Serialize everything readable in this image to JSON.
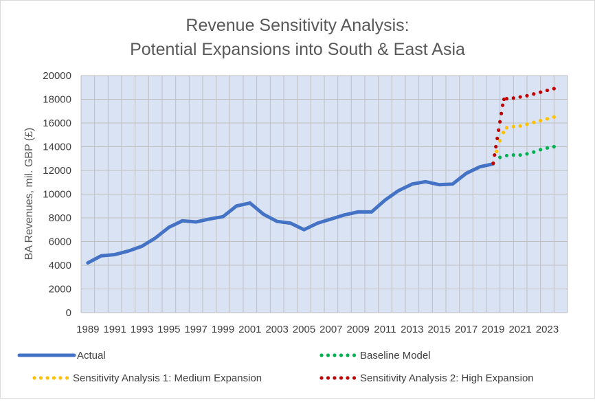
{
  "chart_data": {
    "type": "line",
    "title_lines": [
      "Revenue Sensitivity  Analysis:",
      "Potential Expansions into South & East Asia"
    ],
    "xlabel": "",
    "ylabel": "BA Revenues, mil. GBP (£)",
    "ylim": [
      0,
      20000
    ],
    "yticks": [
      0,
      2000,
      4000,
      6000,
      8000,
      10000,
      12000,
      14000,
      16000,
      18000,
      20000
    ],
    "xlim": [
      1989,
      2024
    ],
    "xticks": [
      1989,
      1991,
      1993,
      1995,
      1997,
      1999,
      2001,
      2003,
      2005,
      2007,
      2009,
      2011,
      2013,
      2015,
      2017,
      2019,
      2021,
      2023
    ],
    "grid": true,
    "legend_position": "bottom",
    "series": [
      {
        "name": "Actual",
        "style": "solid",
        "color": "#4472C4",
        "x": [
          1989,
          1990,
          1991,
          1992,
          1993,
          1994,
          1995,
          1996,
          1997,
          1998,
          1999,
          2000,
          2001,
          2002,
          2003,
          2004,
          2005,
          2006,
          2007,
          2008,
          2009,
          2010,
          2011,
          2012,
          2013,
          2014,
          2015,
          2016,
          2017,
          2018,
          2019
        ],
        "values": [
          4200,
          4800,
          4900,
          5200,
          5600,
          6300,
          7200,
          7750,
          7650,
          7900,
          8100,
          9000,
          9250,
          8300,
          7700,
          7550,
          7000,
          7550,
          7900,
          8250,
          8500,
          8500,
          9500,
          10300,
          10850,
          11050,
          10800,
          10850,
          11750,
          12300,
          12550
        ]
      },
      {
        "name": "Baseline Model",
        "style": "dotted",
        "color": "#00B050",
        "x": [
          2019,
          2019.5,
          2020,
          2020.5,
          2021,
          2021.5,
          2022,
          2022.5,
          2023,
          2023.5
        ],
        "values": [
          12600,
          13100,
          13250,
          13300,
          13300,
          13400,
          13550,
          13750,
          13900,
          14000
        ]
      },
      {
        "name": "Sensitivity Analysis 1: Medium Expansion",
        "style": "dotted",
        "color": "#FFC000",
        "x": [
          2019,
          2019.25,
          2019.5,
          2019.75,
          2020,
          2020.5,
          2021,
          2021.5,
          2022,
          2022.5,
          2023,
          2023.5
        ],
        "values": [
          12600,
          13600,
          14500,
          15200,
          15600,
          15700,
          15750,
          15900,
          16050,
          16200,
          16350,
          16500
        ]
      },
      {
        "name": "Sensitivity Analysis 2: High Expansion",
        "style": "dotted",
        "color": "#C00000",
        "x": [
          2019,
          2019.1,
          2019.2,
          2019.3,
          2019.4,
          2019.5,
          2019.6,
          2019.7,
          2019.8,
          2020,
          2020.5,
          2021,
          2021.5,
          2022,
          2022.5,
          2023,
          2023.5
        ],
        "values": [
          12600,
          13300,
          14000,
          14700,
          15400,
          16100,
          16800,
          17500,
          18000,
          18050,
          18100,
          18200,
          18300,
          18450,
          18600,
          18750,
          18900
        ]
      }
    ]
  }
}
